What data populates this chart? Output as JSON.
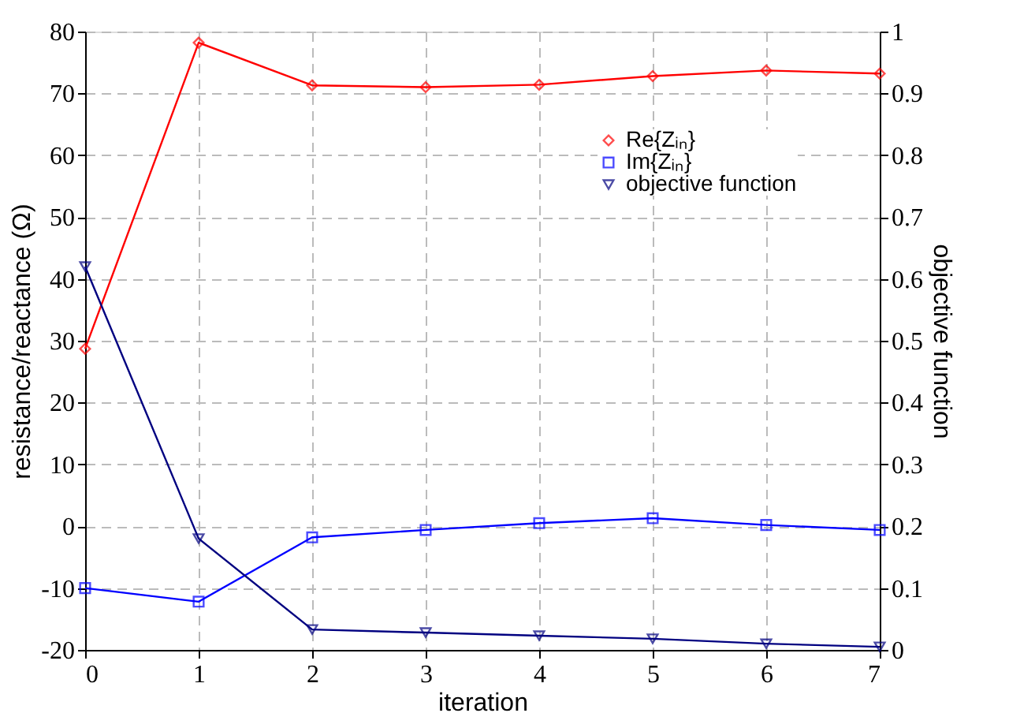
{
  "chart_data": {
    "type": "line",
    "xlabel": "iteration",
    "ylabel": "resistance/reactance (Ω)",
    "y2label": "objective function",
    "x": [
      0,
      1,
      2,
      3,
      4,
      5,
      6,
      7
    ],
    "series": [
      {
        "name": "Re{Zᵢₙ}",
        "color": "#ff0000",
        "marker": "diamond",
        "values": [
          28.7,
          78.2,
          71.3,
          71.0,
          71.4,
          72.8,
          73.7,
          73.2
        ]
      },
      {
        "name": "Im{Zᵢₙ}",
        "color": "#0000ff",
        "marker": "square",
        "values": [
          -10.0,
          -12.2,
          -1.8,
          -0.6,
          0.5,
          1.3,
          0.2,
          -0.6
        ]
      },
      {
        "name": "objective function",
        "color": "#000080",
        "marker": "triangle",
        "axis": "y2",
        "values": [
          0.62,
          0.18,
          0.033,
          0.028,
          0.023,
          0.018,
          0.01,
          0.005
        ]
      }
    ],
    "xlim": [
      0,
      7
    ],
    "xticks": [
      0,
      1,
      2,
      3,
      4,
      5,
      6,
      7
    ],
    "ylim": [
      -20,
      80
    ],
    "yticks": [
      -20,
      -10,
      0,
      10,
      20,
      30,
      40,
      50,
      60,
      70,
      80
    ],
    "y2lim": [
      0,
      1
    ],
    "y2ticks": [
      0,
      0.1,
      0.2,
      0.3,
      0.4,
      0.5,
      0.6,
      0.7,
      0.8,
      0.9,
      1
    ],
    "grid": true,
    "legend": "top right",
    "line_style": "solid"
  }
}
